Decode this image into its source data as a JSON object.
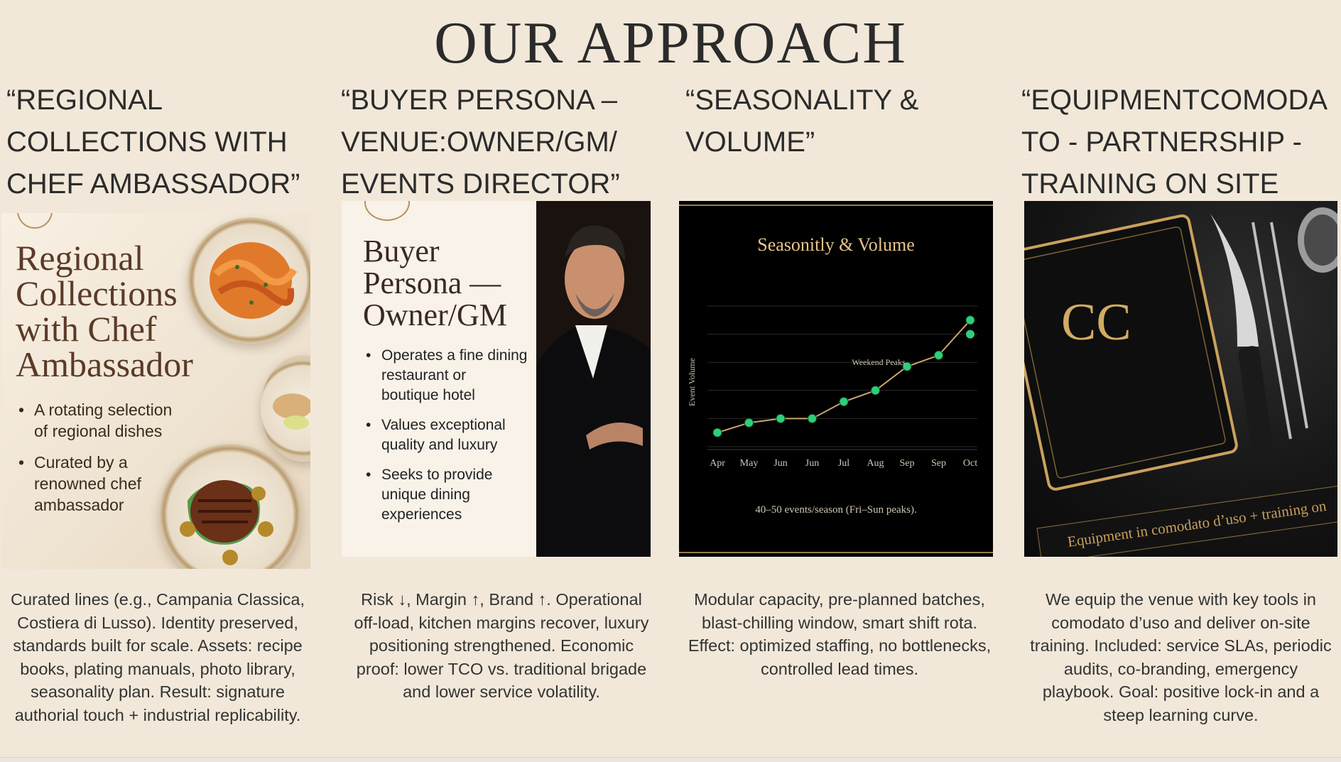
{
  "slide": {
    "title": "OUR APPROACH",
    "columns": [
      {
        "heading": "“REGIONAL COLLECTIONS WITH CHEF AMBASSADOR”",
        "heading_lines": [
          "“REGIONAL",
          "COLLECTIONS WITH",
          "CHEF AMBASSADOR”"
        ],
        "panel": {
          "title_lines": [
            "Regional",
            "Collections",
            "with Chef",
            "Ambassador"
          ],
          "bullets": [
            [
              "A rotating selection",
              "of regional dishes"
            ],
            [
              "Curated by a",
              "renowned chef",
              "ambassador"
            ]
          ]
        },
        "description_lines": [
          "Curated lines (e.g., Campania Classica,",
          "Costiera di Lusso). Identity preserved,",
          "standards built for scale. Assets: recipe",
          "books, plating manuals, photo library,",
          "seasonality plan. Result: signature",
          "authorial touch + industrial replicability."
        ]
      },
      {
        "heading_lines": [
          "“BUYER PERSONA –",
          "VENUE:OWNER/GM/",
          "EVENTS DIRECTOR”"
        ],
        "panel": {
          "title_lines": [
            "Buyer",
            "Persona —",
            "Owner/GM"
          ],
          "bullets": [
            [
              "Operates a fine dining",
              "restaurant or",
              "boutique hotel"
            ],
            [
              "Values exceptional",
              "quality and luxury"
            ],
            [
              "Seeks to provide",
              "unique dining",
              "experiences"
            ]
          ]
        },
        "description_lines": [
          "Risk ↓, Margin ↑, Brand ↑. Operational",
          "off-load, kitchen margins recover, luxury",
          "positioning strengthened. Economic",
          "proof: lower TCO vs. traditional brigade",
          "and lower service volatility."
        ]
      },
      {
        "heading_lines": [
          "“SEASONALITY &",
          "VOLUME”"
        ],
        "description_lines": [
          "Modular capacity, pre-planned batches,",
          "blast-chilling window, smart shift rota.",
          "Effect: optimized staffing, no bottlenecks,",
          "controlled lead times."
        ]
      },
      {
        "heading_lines": [
          "“EQUIPMENTCOMODA",
          "TO - PARTNERSHIP -",
          "TRAINING ON SITE"
        ],
        "panel": {
          "monogram": "CC",
          "banner": "Equipment in comodato d’uso + training on"
        },
        "description_lines": [
          "We equip the venue with key tools in",
          "comodato d’uso and deliver on-site",
          "training. Included: service SLAs, periodic",
          "audits, co-branding, emergency",
          "playbook. Goal: positive lock-in and a",
          "steep learning curve."
        ]
      }
    ]
  },
  "chart_data": {
    "type": "line",
    "title": "Seasonitly & Volume",
    "ylabel": "Event Volume",
    "xlabel": "",
    "categories": [
      "Apr",
      "May",
      "Jun",
      "Jun",
      "Jul",
      "Aug",
      "Sep",
      "Sep",
      "Oct"
    ],
    "series": [
      {
        "values": [
          3,
          3.7,
          4,
          4,
          5.2,
          6,
          7.7,
          8.5,
          11
        ]
      }
    ],
    "extra_points": [
      {
        "category_index": 8,
        "value": 10
      }
    ],
    "ylim": [
      2,
      12
    ],
    "annotation": {
      "text": "Weekend Peaks",
      "category_index": 6
    },
    "footnote": "40–50 events/season (Fri–Sun peaks).",
    "grid": true,
    "colors": {
      "line": "#c9a56a",
      "point": "#2ecf7a",
      "text": "#e6c58a",
      "axis": "#cfc6b0",
      "background": "#000000"
    }
  }
}
